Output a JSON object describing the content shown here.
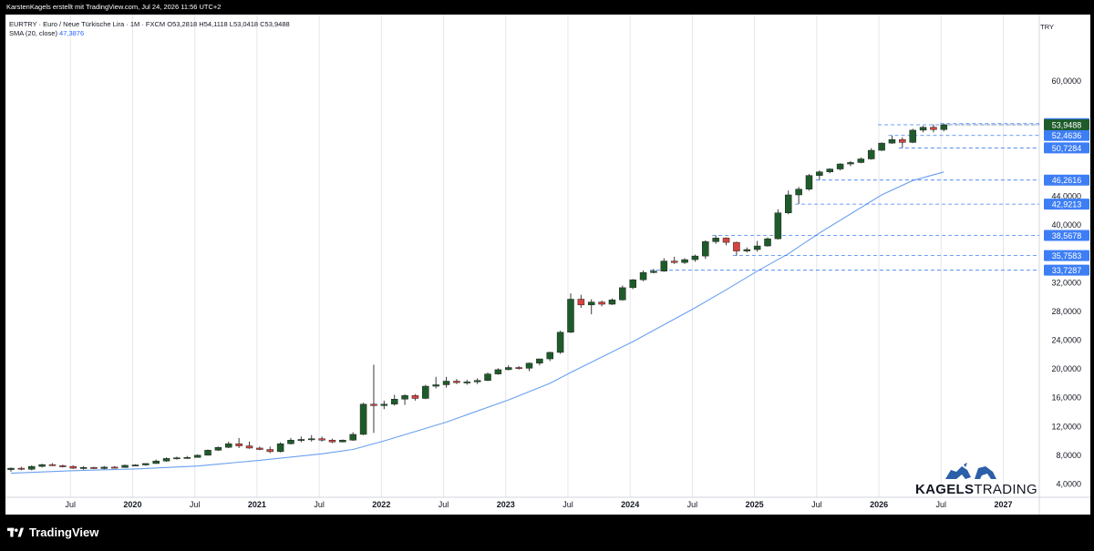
{
  "header": {
    "caption": "KarstenKagels erstellt mit TradingView.com, Jul 24, 2026 11:56 UTC+2"
  },
  "legend": {
    "symbol_line": "EURTRY · Euro  / Neue Türkische Lira · 1M · FXCM  O53,2818  H54,1118  L53,0418  C53,9488",
    "sma_label": "SMA (20, close)",
    "sma_value": "47,3876"
  },
  "currency": "TRY",
  "footer": {
    "logo_text": "TradingView"
  },
  "brand": {
    "word1": "KAGELS",
    "word2": "TRADING"
  },
  "colors": {
    "up": "#1e5b2a",
    "down": "#d9433f",
    "sma": "#6aa0f0",
    "price_label": "#3d7ef5",
    "last_label": "#1e5b2a"
  },
  "chart_data": {
    "type": "candlestick",
    "ylim": [
      3,
      65
    ],
    "y_ticks": [
      "4,0000",
      "8,0000",
      "12,0000",
      "16,0000",
      "20,0000",
      "24,0000",
      "28,0000",
      "32,0000",
      "40,0000",
      "44,0000",
      "60,0000"
    ],
    "x_ticks": [
      "Jul",
      "2020",
      "Jul",
      "2021",
      "Jul",
      "2022",
      "Jul",
      "2023",
      "Jul",
      "2024",
      "Jul",
      "2025",
      "Jul",
      "2026",
      "Jul",
      "2027"
    ],
    "candles": [
      {
        "date": "2019-01",
        "o": 6.0,
        "h": 6.3,
        "l": 5.7,
        "c": 6.2
      },
      {
        "date": "2019-02",
        "o": 6.2,
        "h": 6.4,
        "l": 5.9,
        "c": 6.05
      },
      {
        "date": "2019-03",
        "o": 6.05,
        "h": 6.6,
        "l": 5.9,
        "c": 6.45
      },
      {
        "date": "2019-04",
        "o": 6.45,
        "h": 6.8,
        "l": 6.3,
        "c": 6.7
      },
      {
        "date": "2019-05",
        "o": 6.7,
        "h": 6.9,
        "l": 6.5,
        "c": 6.55
      },
      {
        "date": "2019-06",
        "o": 6.55,
        "h": 6.7,
        "l": 6.3,
        "c": 6.45
      },
      {
        "date": "2019-07",
        "o": 6.45,
        "h": 6.6,
        "l": 6.1,
        "c": 6.2
      },
      {
        "date": "2019-08",
        "o": 6.2,
        "h": 6.5,
        "l": 6.0,
        "c": 6.3
      },
      {
        "date": "2019-09",
        "o": 6.3,
        "h": 6.4,
        "l": 6.1,
        "c": 6.15
      },
      {
        "date": "2019-10",
        "o": 6.15,
        "h": 6.5,
        "l": 6.05,
        "c": 6.35
      },
      {
        "date": "2019-11",
        "o": 6.35,
        "h": 6.5,
        "l": 6.2,
        "c": 6.3
      },
      {
        "date": "2019-12",
        "o": 6.3,
        "h": 6.7,
        "l": 6.25,
        "c": 6.6
      },
      {
        "date": "2020-01",
        "o": 6.6,
        "h": 6.75,
        "l": 6.5,
        "c": 6.65
      },
      {
        "date": "2020-02",
        "o": 6.65,
        "h": 6.9,
        "l": 6.55,
        "c": 6.85
      },
      {
        "date": "2020-03",
        "o": 6.85,
        "h": 7.4,
        "l": 6.8,
        "c": 7.2
      },
      {
        "date": "2020-04",
        "o": 7.2,
        "h": 7.7,
        "l": 7.1,
        "c": 7.55
      },
      {
        "date": "2020-05",
        "o": 7.55,
        "h": 7.8,
        "l": 7.4,
        "c": 7.65
      },
      {
        "date": "2020-06",
        "o": 7.65,
        "h": 7.9,
        "l": 7.5,
        "c": 7.7
      },
      {
        "date": "2020-07",
        "o": 7.7,
        "h": 8.1,
        "l": 7.65,
        "c": 8.0
      },
      {
        "date": "2020-08",
        "o": 8.0,
        "h": 8.8,
        "l": 7.95,
        "c": 8.7
      },
      {
        "date": "2020-09",
        "o": 8.7,
        "h": 9.2,
        "l": 8.6,
        "c": 9.1
      },
      {
        "date": "2020-10",
        "o": 9.1,
        "h": 9.9,
        "l": 9.0,
        "c": 9.6
      },
      {
        "date": "2020-11",
        "o": 9.6,
        "h": 10.4,
        "l": 9.0,
        "c": 9.3
      },
      {
        "date": "2020-12",
        "o": 9.3,
        "h": 9.9,
        "l": 8.9,
        "c": 9.0
      },
      {
        "date": "2021-01",
        "o": 9.0,
        "h": 9.2,
        "l": 8.7,
        "c": 8.8
      },
      {
        "date": "2021-02",
        "o": 8.8,
        "h": 9.2,
        "l": 8.3,
        "c": 8.5
      },
      {
        "date": "2021-03",
        "o": 8.5,
        "h": 9.8,
        "l": 8.4,
        "c": 9.6
      },
      {
        "date": "2021-04",
        "o": 9.6,
        "h": 10.4,
        "l": 9.5,
        "c": 10.1
      },
      {
        "date": "2021-05",
        "o": 10.1,
        "h": 10.6,
        "l": 9.8,
        "c": 10.2
      },
      {
        "date": "2021-06",
        "o": 10.2,
        "h": 10.8,
        "l": 9.9,
        "c": 10.3
      },
      {
        "date": "2021-07",
        "o": 10.3,
        "h": 10.6,
        "l": 9.9,
        "c": 10.1
      },
      {
        "date": "2021-08",
        "o": 10.1,
        "h": 10.3,
        "l": 9.7,
        "c": 9.85
      },
      {
        "date": "2021-09",
        "o": 9.85,
        "h": 10.2,
        "l": 9.8,
        "c": 10.1
      },
      {
        "date": "2021-10",
        "o": 10.1,
        "h": 11.2,
        "l": 10.0,
        "c": 10.9
      },
      {
        "date": "2021-11",
        "o": 10.9,
        "h": 15.3,
        "l": 10.8,
        "c": 15.1
      },
      {
        "date": "2021-12",
        "o": 15.1,
        "h": 20.6,
        "l": 11.1,
        "c": 14.9
      },
      {
        "date": "2022-01",
        "o": 14.9,
        "h": 15.6,
        "l": 14.4,
        "c": 15.1
      },
      {
        "date": "2022-02",
        "o": 15.1,
        "h": 16.4,
        "l": 14.9,
        "c": 15.8
      },
      {
        "date": "2022-03",
        "o": 15.8,
        "h": 16.5,
        "l": 15.0,
        "c": 16.3
      },
      {
        "date": "2022-04",
        "o": 16.3,
        "h": 16.5,
        "l": 15.6,
        "c": 15.9
      },
      {
        "date": "2022-05",
        "o": 15.9,
        "h": 17.8,
        "l": 15.8,
        "c": 17.6
      },
      {
        "date": "2022-06",
        "o": 17.6,
        "h": 18.9,
        "l": 17.3,
        "c": 17.8
      },
      {
        "date": "2022-07",
        "o": 17.8,
        "h": 18.9,
        "l": 17.4,
        "c": 18.3
      },
      {
        "date": "2022-08",
        "o": 18.3,
        "h": 18.6,
        "l": 17.9,
        "c": 18.1
      },
      {
        "date": "2022-09",
        "o": 18.1,
        "h": 18.5,
        "l": 17.8,
        "c": 18.2
      },
      {
        "date": "2022-10",
        "o": 18.2,
        "h": 18.7,
        "l": 17.9,
        "c": 18.4
      },
      {
        "date": "2022-11",
        "o": 18.4,
        "h": 19.5,
        "l": 18.3,
        "c": 19.3
      },
      {
        "date": "2022-12",
        "o": 19.3,
        "h": 20.1,
        "l": 19.2,
        "c": 19.9
      },
      {
        "date": "2023-01",
        "o": 19.9,
        "h": 20.5,
        "l": 19.8,
        "c": 20.2
      },
      {
        "date": "2023-02",
        "o": 20.2,
        "h": 20.4,
        "l": 19.9,
        "c": 20.1
      },
      {
        "date": "2023-03",
        "o": 20.1,
        "h": 20.9,
        "l": 19.7,
        "c": 20.8
      },
      {
        "date": "2023-04",
        "o": 20.8,
        "h": 21.3,
        "l": 20.5,
        "c": 21.4
      },
      {
        "date": "2023-05",
        "o": 21.4,
        "h": 22.4,
        "l": 21.1,
        "c": 22.3
      },
      {
        "date": "2023-06",
        "o": 22.3,
        "h": 25.3,
        "l": 22.1,
        "c": 25.1
      },
      {
        "date": "2023-07",
        "o": 25.1,
        "h": 30.5,
        "l": 25.0,
        "c": 29.7
      },
      {
        "date": "2023-08",
        "o": 29.7,
        "h": 30.3,
        "l": 28.5,
        "c": 28.9
      },
      {
        "date": "2023-09",
        "o": 28.9,
        "h": 29.7,
        "l": 27.6,
        "c": 29.3
      },
      {
        "date": "2023-10",
        "o": 29.3,
        "h": 29.5,
        "l": 28.7,
        "c": 29.0
      },
      {
        "date": "2023-11",
        "o": 29.0,
        "h": 29.8,
        "l": 28.9,
        "c": 29.6
      },
      {
        "date": "2023-12",
        "o": 29.6,
        "h": 31.6,
        "l": 29.5,
        "c": 31.3
      },
      {
        "date": "2024-01",
        "o": 31.3,
        "h": 32.5,
        "l": 31.1,
        "c": 32.4
      },
      {
        "date": "2024-02",
        "o": 32.4,
        "h": 33.7,
        "l": 32.2,
        "c": 33.4
      },
      {
        "date": "2024-03",
        "o": 33.4,
        "h": 33.9,
        "l": 33.3,
        "c": 33.6
      },
      {
        "date": "2024-04",
        "o": 33.6,
        "h": 35.4,
        "l": 33.5,
        "c": 35.0
      },
      {
        "date": "2024-05",
        "o": 35.0,
        "h": 35.6,
        "l": 34.6,
        "c": 34.8
      },
      {
        "date": "2024-06",
        "o": 34.8,
        "h": 35.4,
        "l": 34.6,
        "c": 35.2
      },
      {
        "date": "2024-07",
        "o": 35.2,
        "h": 35.9,
        "l": 34.9,
        "c": 35.7
      },
      {
        "date": "2024-08",
        "o": 35.7,
        "h": 37.9,
        "l": 35.3,
        "c": 37.7
      },
      {
        "date": "2024-09",
        "o": 37.7,
        "h": 38.57,
        "l": 37.4,
        "c": 38.2
      },
      {
        "date": "2024-10",
        "o": 38.2,
        "h": 38.3,
        "l": 37.2,
        "c": 37.6
      },
      {
        "date": "2024-11",
        "o": 37.6,
        "h": 37.7,
        "l": 35.76,
        "c": 36.4
      },
      {
        "date": "2024-12",
        "o": 36.4,
        "h": 36.9,
        "l": 36.2,
        "c": 36.6
      },
      {
        "date": "2025-01",
        "o": 36.6,
        "h": 37.8,
        "l": 36.3,
        "c": 37.1
      },
      {
        "date": "2025-02",
        "o": 37.1,
        "h": 38.3,
        "l": 37.0,
        "c": 38.1
      },
      {
        "date": "2025-03",
        "o": 38.1,
        "h": 42.2,
        "l": 38.0,
        "c": 41.7
      },
      {
        "date": "2025-04",
        "o": 41.7,
        "h": 44.8,
        "l": 41.5,
        "c": 44.2
      },
      {
        "date": "2025-05",
        "o": 44.2,
        "h": 45.3,
        "l": 42.92,
        "c": 45.0
      },
      {
        "date": "2025-06",
        "o": 45.0,
        "h": 47.1,
        "l": 44.8,
        "c": 46.9
      },
      {
        "date": "2025-07",
        "o": 46.9,
        "h": 47.6,
        "l": 46.26,
        "c": 47.4
      },
      {
        "date": "2025-08",
        "o": 47.4,
        "h": 47.9,
        "l": 47.2,
        "c": 47.8
      },
      {
        "date": "2025-09",
        "o": 47.8,
        "h": 48.6,
        "l": 47.6,
        "c": 48.5
      },
      {
        "date": "2025-10",
        "o": 48.5,
        "h": 48.9,
        "l": 48.2,
        "c": 48.7
      },
      {
        "date": "2025-11",
        "o": 48.7,
        "h": 49.4,
        "l": 48.6,
        "c": 49.2
      },
      {
        "date": "2025-12",
        "o": 49.2,
        "h": 50.7,
        "l": 49.1,
        "c": 50.4
      },
      {
        "date": "2026-01",
        "o": 50.4,
        "h": 51.5,
        "l": 50.3,
        "c": 51.4
      },
      {
        "date": "2026-02",
        "o": 51.4,
        "h": 52.46,
        "l": 51.3,
        "c": 51.9
      },
      {
        "date": "2026-03",
        "o": 51.9,
        "h": 52.2,
        "l": 50.73,
        "c": 51.5
      },
      {
        "date": "2026-04",
        "o": 51.5,
        "h": 53.4,
        "l": 51.4,
        "c": 53.2
      },
      {
        "date": "2026-05",
        "o": 53.2,
        "h": 53.8,
        "l": 52.9,
        "c": 53.6
      },
      {
        "date": "2026-06",
        "o": 53.6,
        "h": 54.0,
        "l": 52.9,
        "c": 53.28
      },
      {
        "date": "2026-07",
        "o": 53.28,
        "h": 54.11,
        "l": 53.04,
        "c": 53.95
      }
    ],
    "sma": {
      "label": "SMA (20, close)",
      "points": [
        {
          "date": "2019-01",
          "v": 5.5
        },
        {
          "date": "2019-07",
          "v": 5.85
        },
        {
          "date": "2020-01",
          "v": 6.1
        },
        {
          "date": "2020-07",
          "v": 6.5
        },
        {
          "date": "2021-01",
          "v": 7.3
        },
        {
          "date": "2021-07",
          "v": 8.2
        },
        {
          "date": "2021-10",
          "v": 8.8
        },
        {
          "date": "2022-01",
          "v": 10.0
        },
        {
          "date": "2022-07",
          "v": 12.6
        },
        {
          "date": "2023-01",
          "v": 15.7
        },
        {
          "date": "2023-05",
          "v": 18.0
        },
        {
          "date": "2023-07",
          "v": 19.5
        },
        {
          "date": "2024-01",
          "v": 23.8
        },
        {
          "date": "2024-07",
          "v": 28.5
        },
        {
          "date": "2024-10",
          "v": 31.0
        },
        {
          "date": "2025-01",
          "v": 33.6
        },
        {
          "date": "2025-04",
          "v": 36.0
        },
        {
          "date": "2025-07",
          "v": 38.9
        },
        {
          "date": "2026-01",
          "v": 44.2
        },
        {
          "date": "2026-04",
          "v": 46.2
        },
        {
          "date": "2026-07",
          "v": 47.39
        }
      ]
    },
    "levels": [
      {
        "value": 54.1118,
        "label": "54,1118",
        "from": "2026-07"
      },
      {
        "value": 53.9487,
        "label": "53,9487",
        "from": "2026-01"
      },
      {
        "value": 52.4636,
        "label": "52,4636",
        "from": "2026-02"
      },
      {
        "value": 50.7284,
        "label": "50,7284",
        "from": "2026-03"
      },
      {
        "value": 46.2616,
        "label": "46,2616",
        "from": "2025-07"
      },
      {
        "value": 42.9213,
        "label": "42,9213",
        "from": "2025-05"
      },
      {
        "value": 38.5678,
        "label": "38,5678",
        "from": "2024-09"
      },
      {
        "value": 35.7583,
        "label": "35,7583",
        "from": "2024-11"
      },
      {
        "value": 33.7287,
        "label": "33,7287",
        "from": "2024-03"
      }
    ],
    "last_price": {
      "value": 53.9488,
      "label": "53,9488"
    }
  }
}
